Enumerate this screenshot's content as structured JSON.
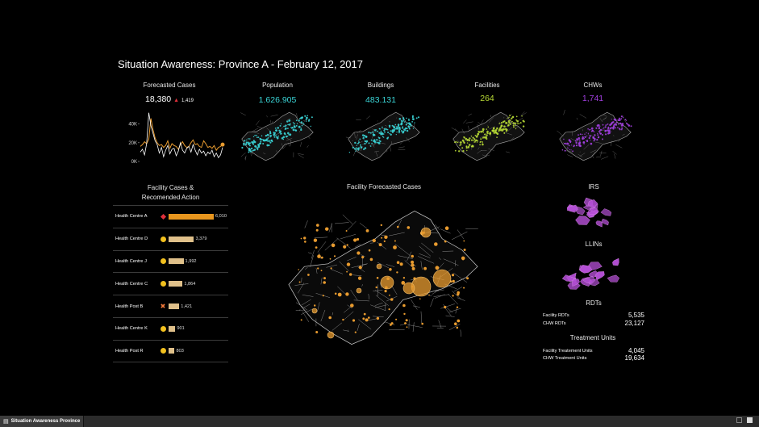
{
  "header": {
    "title": "Situation Awareness:  Province A -  February 12, 2017"
  },
  "kpis": {
    "forecast": {
      "label": "Forecasted Cases",
      "value": "18,380",
      "delta": "1,419",
      "delta_icon": "triangle-up-icon",
      "color": "#e89b2f"
    },
    "population": {
      "label": "Population",
      "value": "1.626.905",
      "color": "#3ad4d6"
    },
    "buildings": {
      "label": "Buildings",
      "value": "483.131",
      "color": "#3ad4d6"
    },
    "facilities": {
      "label": "Facilities",
      "value": "264",
      "color": "#b7d935"
    },
    "chws": {
      "label": "CHWs",
      "value": "1,741",
      "color": "#a23fe0"
    }
  },
  "chart_data": {
    "type": "line",
    "title": "Forecasted Cases",
    "xlabel": "",
    "ylabel": "",
    "ylim": [
      0,
      50000
    ],
    "yticks": [
      "40K",
      "20K",
      "0K"
    ],
    "series": [
      {
        "color": "#e89b2f",
        "values": [
          16000,
          18000,
          21000,
          19000,
          24000,
          46000,
          34000,
          25000,
          20000,
          17000,
          18000,
          15000,
          17000,
          22000,
          14000,
          19000,
          17000,
          16000,
          13000,
          18000,
          21000,
          17000,
          15000,
          16000,
          20000,
          23000,
          18000,
          19000,
          16000,
          15000,
          22000,
          19000,
          15000,
          16000,
          14000,
          17000,
          12000,
          15000,
          16000,
          18000
        ]
      },
      {
        "color": "#ffffff",
        "values": [
          10000,
          13000,
          7000,
          19000,
          52000,
          38000,
          30000,
          22000,
          18000,
          9000,
          15000,
          5000,
          12000,
          17000,
          8000,
          13000,
          14000,
          6000,
          11000,
          20000,
          12000,
          9000,
          14000,
          16000,
          10000,
          18000,
          12000,
          7000,
          13000,
          9000,
          11000,
          6000,
          10000,
          8000,
          12000,
          5000,
          9000,
          4000,
          7000,
          15000
        ]
      }
    ]
  },
  "facility_section": {
    "title_line1": "Facility Cases &",
    "title_line2": "Recomended Action",
    "rows": [
      {
        "name": "Health Centre A",
        "value": "6,010",
        "num": 6010,
        "marker": "diamond-icon",
        "marker_color": "#e0303b",
        "bar_color": "#e8961e"
      },
      {
        "name": "Health Centre D",
        "value": "3,379",
        "num": 3379,
        "marker": "circle-icon",
        "marker_color": "#f2c01e",
        "bar_color": "#dfc08a"
      },
      {
        "name": "Health Centre J",
        "value": "1,992",
        "num": 1992,
        "marker": "circle-icon",
        "marker_color": "#f2c01e",
        "bar_color": "#dfc08a"
      },
      {
        "name": "Health Centre C",
        "value": "1,864",
        "num": 1864,
        "marker": "circle-icon",
        "marker_color": "#f2c01e",
        "bar_color": "#dfc08a"
      },
      {
        "name": "Health Post B",
        "value": "1,421",
        "num": 1421,
        "marker": "cross-icon",
        "marker_color": "#f47a3a",
        "bar_color": "#dfc08a"
      },
      {
        "name": "Health Centre K",
        "value": "901",
        "num": 901,
        "marker": "circle-icon",
        "marker_color": "#f2c01e",
        "bar_color": "#dfc08a"
      },
      {
        "name": "Health Post R",
        "value": "803",
        "num": 803,
        "marker": "circle-icon",
        "marker_color": "#f2c01e",
        "bar_color": "#dfc08a"
      }
    ]
  },
  "center_map": {
    "title": "Facility Forecasted Cases",
    "color": "#e89b2f"
  },
  "right_panel": {
    "irs_title": "IRS",
    "llins_title": "LLINs",
    "rdts_title": "RDTs",
    "facility_rdts_label": "Facility RDTs",
    "facility_rdts_value": "5,535",
    "chw_rdts_label": "CHW RDTs",
    "chw_rdts_value": "23,127",
    "treatment_title": "Treatment Units",
    "facility_treat_label": "Facility Treatement Units",
    "facility_treat_value": "4,045",
    "chw_treat_label": "CHW Treatment Units",
    "chw_treat_value": "19,634",
    "map_color": "#b54fd6"
  },
  "bottom_bar": {
    "tab_label": "Situation Awareness Province",
    "tab_icon": "dashboard-icon"
  }
}
